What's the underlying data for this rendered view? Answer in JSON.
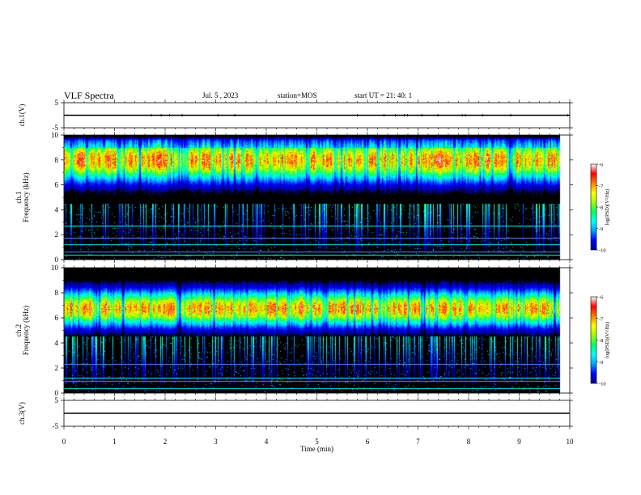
{
  "header": {
    "title": "VLF Spectra",
    "date": "Jul. 5 , 2023",
    "station": "station=MOS",
    "start": "start UT = 21: 40: 1"
  },
  "chart_data": [
    {
      "type": "line",
      "name": "ch1-voltage",
      "ylabel": "ch.1(V)",
      "ylim": [
        -5,
        5
      ],
      "yticks": [
        5,
        -5
      ],
      "xlim": [
        0,
        10
      ],
      "level": 0
    },
    {
      "type": "heatmap",
      "name": "ch1-spectrogram",
      "ylabel": "ch.1\nFrequency (kHz)",
      "ylim": [
        0,
        10
      ],
      "yticks": [
        0,
        2,
        4,
        6,
        8,
        10
      ],
      "xlim": [
        0,
        10
      ],
      "data_end_min": 9.8,
      "peak_band_khz": [
        6.5,
        9.5
      ],
      "lines_khz": [
        0.3,
        0.6,
        1.2,
        1.7,
        2.7
      ],
      "colorbar": {
        "label": "log(PSD)(V²/Hz)",
        "range": [
          -10,
          -6
        ],
        "ticks": [
          -6,
          -7,
          -8,
          -9,
          -10
        ]
      }
    },
    {
      "type": "heatmap",
      "name": "ch2-spectrogram",
      "ylabel": "ch.2\nFrequency (kHz)",
      "ylim": [
        0,
        10
      ],
      "yticks": [
        0,
        2,
        4,
        6,
        8,
        10
      ],
      "xlim": [
        0,
        10
      ],
      "data_end_min": 9.8,
      "peak_band_khz": [
        5.5,
        8.0
      ],
      "lines_khz": [
        0.3,
        0.9,
        1.2,
        2.3
      ],
      "colorbar": {
        "label": "log(PSD)(V²/Hz)",
        "range": [
          -10,
          -6
        ],
        "ticks": [
          -6,
          -7,
          -8,
          -9,
          -10
        ]
      }
    },
    {
      "type": "line",
      "name": "ch3-voltage",
      "ylabel": "ch.3(V)",
      "ylim": [
        -5,
        5
      ],
      "yticks": [
        5,
        -5
      ],
      "xlim": [
        0,
        10
      ],
      "level": 0
    }
  ],
  "xaxis": {
    "label": "Time (min)",
    "ticks": [
      0,
      1,
      2,
      3,
      4,
      5,
      6,
      7,
      8,
      9,
      10
    ]
  },
  "colors": {
    "background": "#000000",
    "colormap": [
      "#00008b",
      "#0000ff",
      "#00a0ff",
      "#00ffff",
      "#00ff60",
      "#a0ff00",
      "#ffff00",
      "#ff8000",
      "#ff0000",
      "#ffffff"
    ]
  }
}
